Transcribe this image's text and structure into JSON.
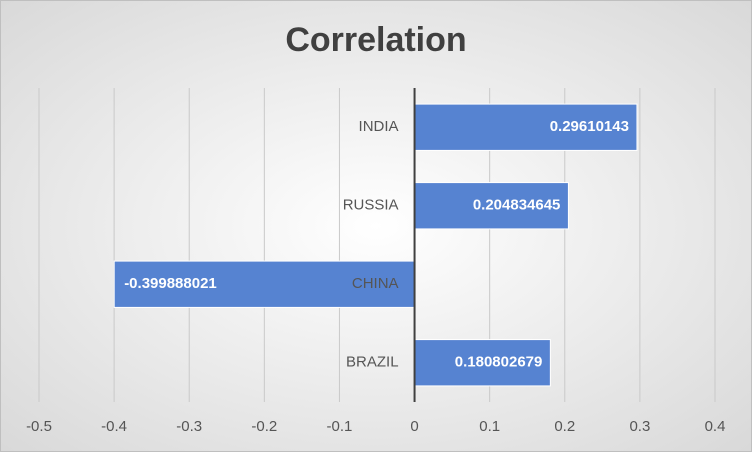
{
  "chart_data": {
    "type": "bar",
    "orientation": "horizontal",
    "title": "Correlation",
    "categories": [
      "INDIA",
      "RUSSIA",
      "CHINA",
      "BRAZIL"
    ],
    "values": [
      0.29610143,
      0.204834645,
      -0.399888021,
      0.180802679
    ],
    "color": "#5683d1",
    "xlim": [
      -0.5,
      0.4
    ],
    "xticks": [
      -0.5,
      -0.4,
      -0.3,
      -0.2,
      -0.1,
      0,
      0.1,
      0.2,
      0.3,
      0.4
    ],
    "grid": true
  }
}
